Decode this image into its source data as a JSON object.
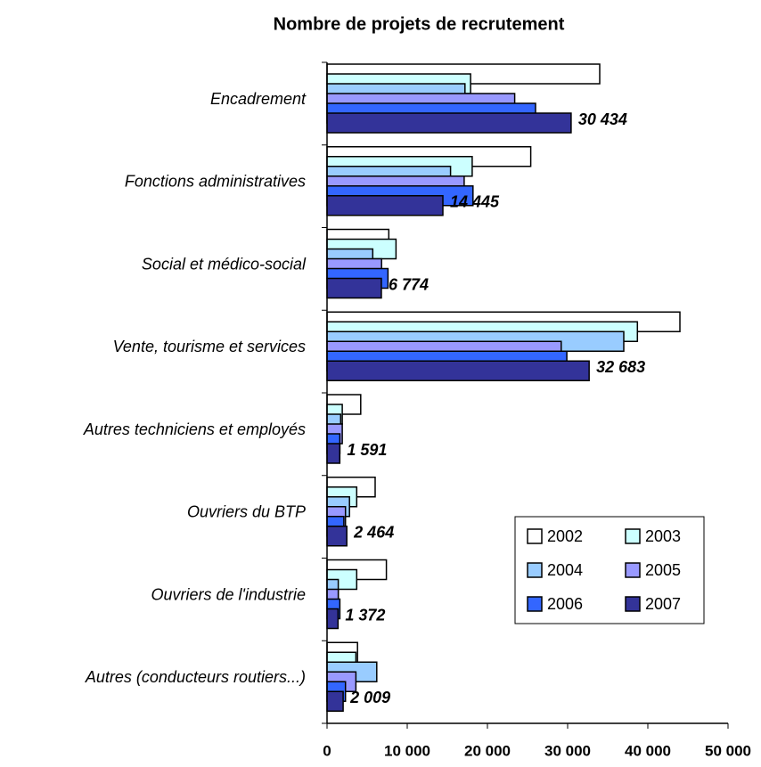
{
  "chart_data": {
    "type": "barh",
    "title": "Nombre de projets de recrutement",
    "categories": [
      "Encadrement",
      "Fonctions administratives",
      "Social et médico-social",
      "Vente, tourisme et services",
      "Autres techniciens et employés",
      "Ouvriers du BTP",
      "Ouvriers de l'industrie",
      "Autres (conducteurs routiers...)"
    ],
    "series": [
      {
        "name": "2002",
        "color": "#ffffff",
        "values": [
          34000,
          25400,
          7700,
          44000,
          4200,
          6000,
          7400,
          3800
        ]
      },
      {
        "name": "2003",
        "color": "#ccffff",
        "values": [
          17900,
          18100,
          8600,
          38700,
          1900,
          3700,
          3700,
          3600
        ]
      },
      {
        "name": "2004",
        "color": "#99ccff",
        "values": [
          17200,
          15400,
          5700,
          37000,
          1700,
          2800,
          1400,
          6200
        ]
      },
      {
        "name": "2005",
        "color": "#9999ff",
        "values": [
          23400,
          17100,
          6800,
          29200,
          1900,
          2300,
          1400,
          3600
        ]
      },
      {
        "name": "2006",
        "color": "#3366ff",
        "values": [
          26000,
          18200,
          7600,
          29900,
          1600,
          2100,
          1600,
          2300
        ]
      },
      {
        "name": "2007",
        "color": "#333399",
        "values": [
          30434,
          14445,
          6774,
          32683,
          1591,
          2464,
          1372,
          2009
        ],
        "value_labels": [
          "30 434",
          "14 445",
          "6 774",
          "32 683",
          "1 591",
          "2 464",
          "1 372",
          "2 009"
        ]
      }
    ],
    "xlim": [
      0,
      50000
    ],
    "xticks": [
      0,
      {
        "value": 10000,
        "label": "10 000"
      },
      {
        "value": 20000,
        "label": "20 000"
      },
      {
        "value": 30000,
        "label": "30 000"
      },
      {
        "value": 40000,
        "label": "40 000"
      },
      {
        "value": 50000,
        "label": "50 000"
      }
    ],
    "grid": false,
    "legend": "lower right"
  }
}
